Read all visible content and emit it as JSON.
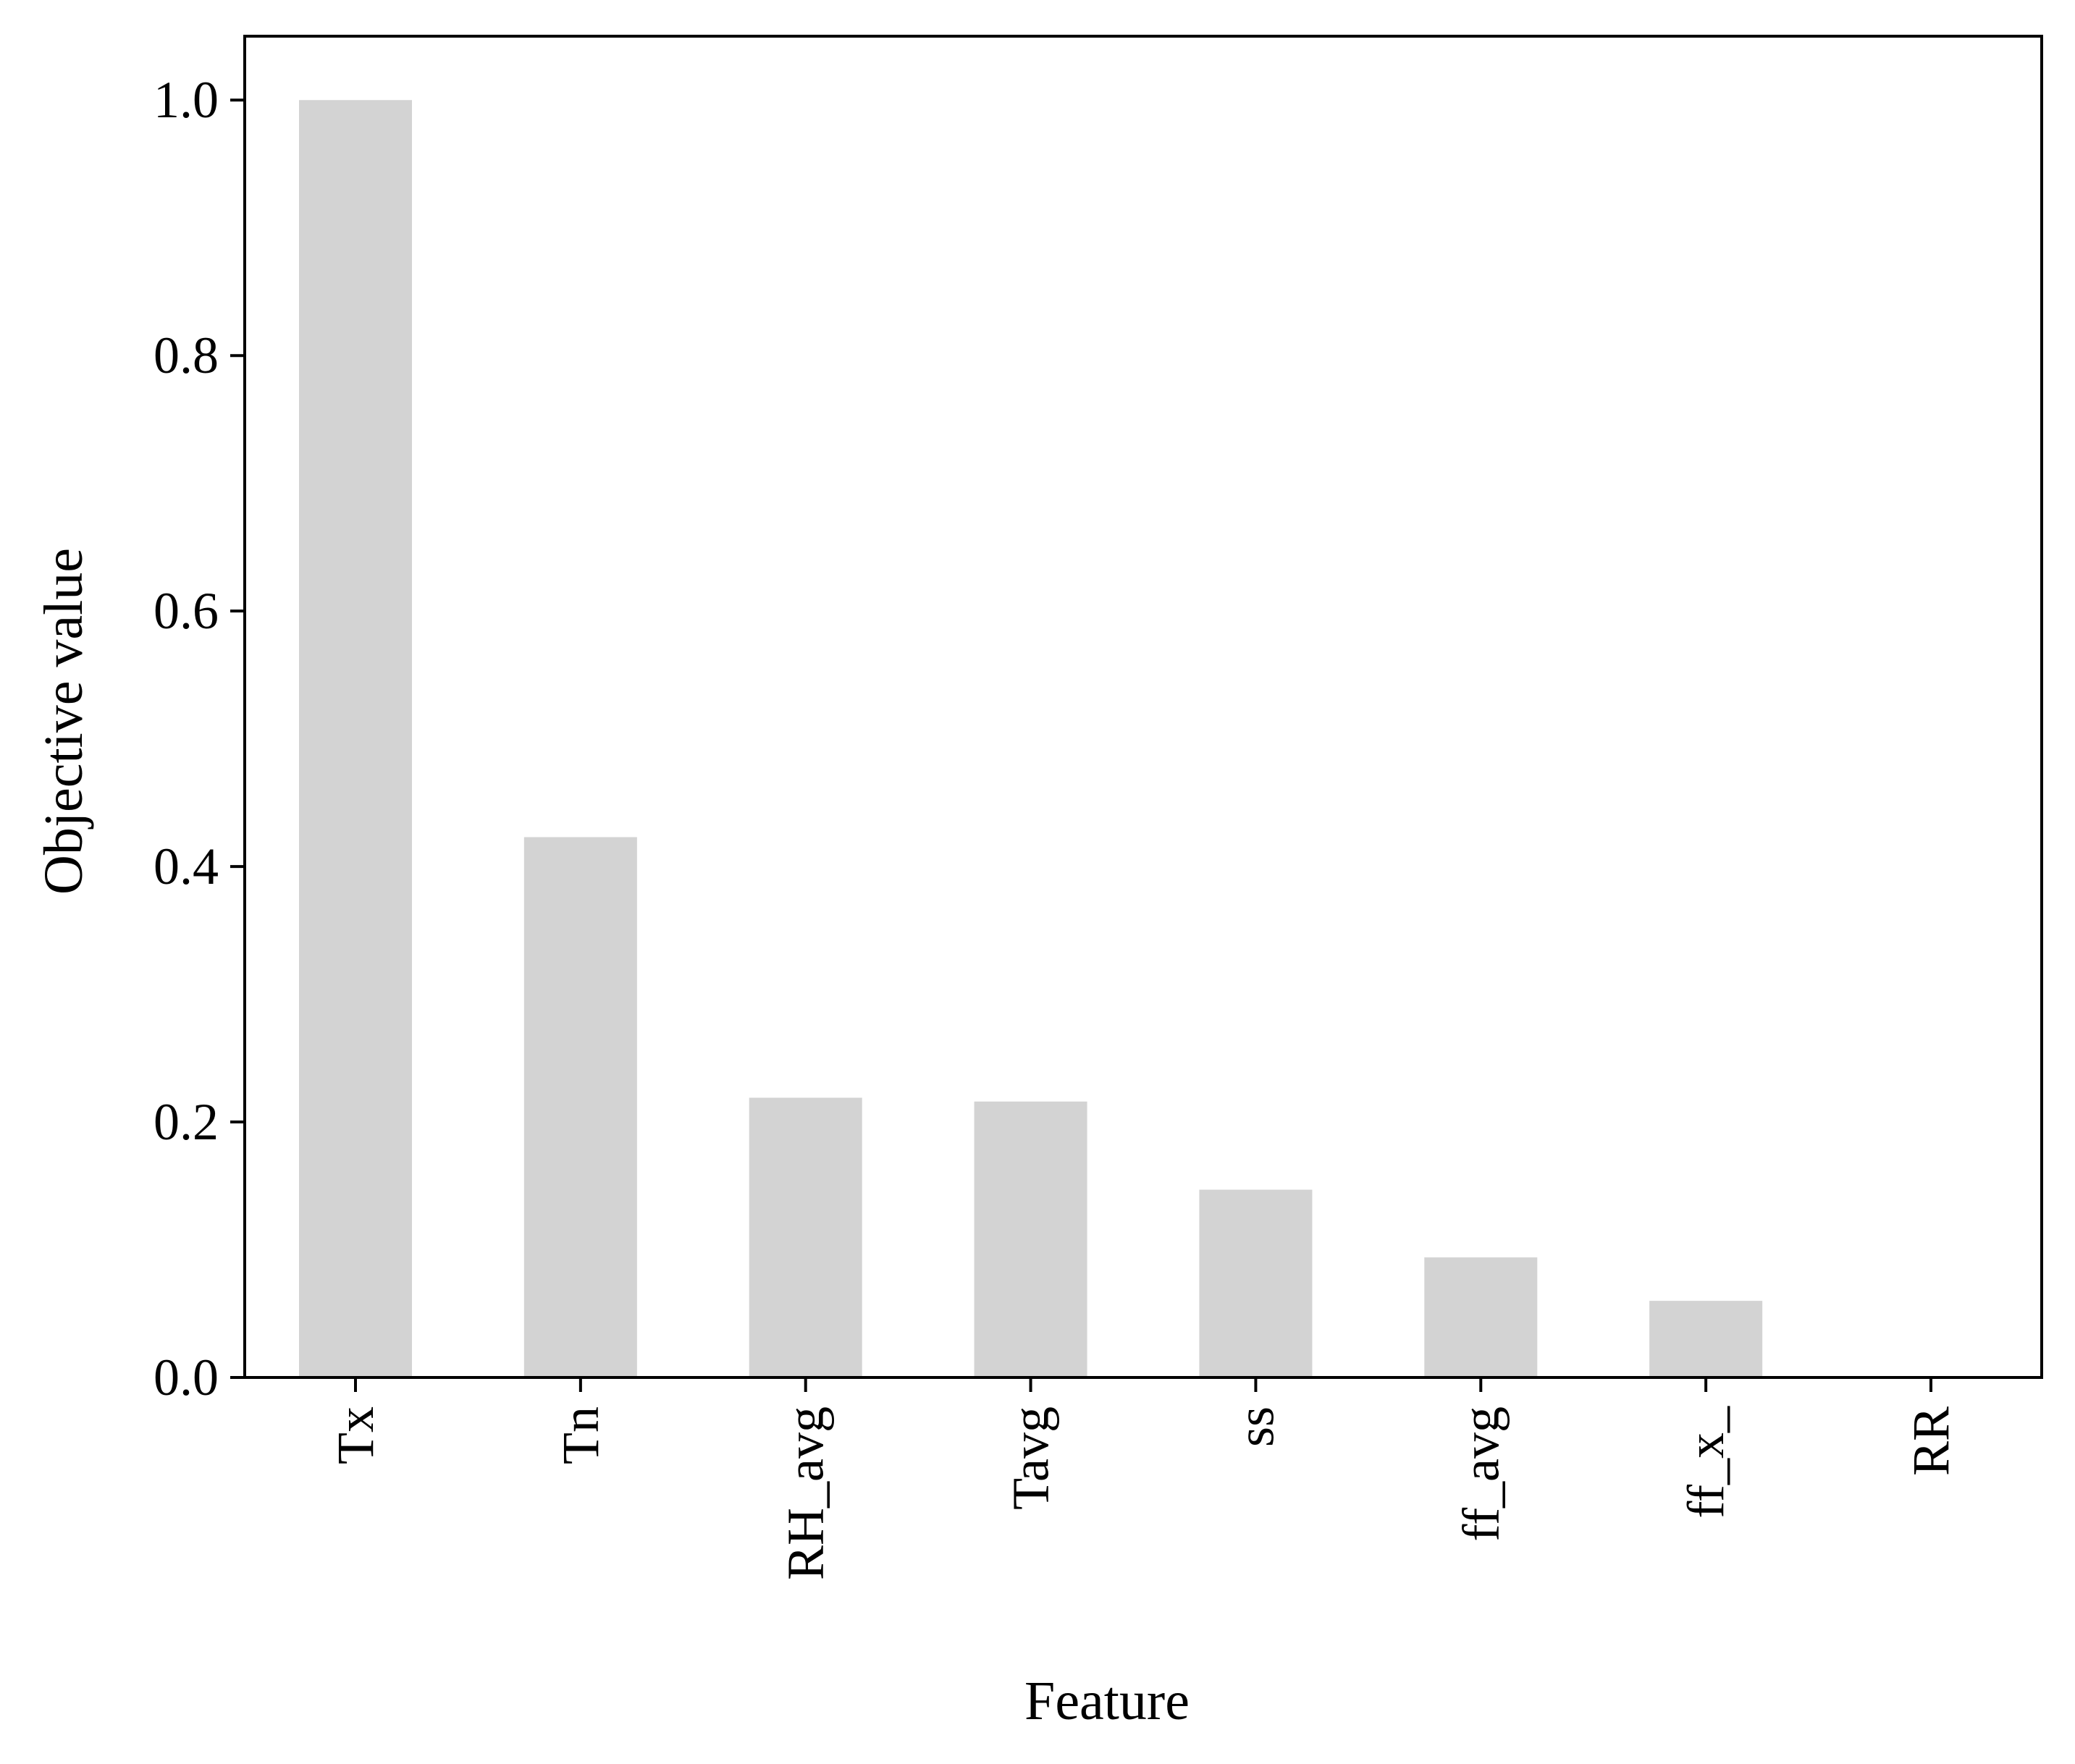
{
  "chart_data": {
    "type": "bar",
    "categories": [
      "Tx",
      "Tn",
      "RH_avg",
      "Tavg",
      "ss",
      "ff_avg",
      "ff_x_",
      "RR"
    ],
    "values": [
      1.0,
      0.423,
      0.219,
      0.216,
      0.147,
      0.094,
      0.06,
      0.0
    ],
    "xlabel": "Feature",
    "ylabel": "Objective value",
    "ylim": [
      0,
      1.05
    ],
    "yticks": [
      0.0,
      0.2,
      0.4,
      0.6,
      0.8,
      1.0
    ],
    "ytick_labels": [
      "0.0",
      "0.2",
      "0.4",
      "0.6",
      "0.8",
      "1.0"
    ],
    "grid": false,
    "bar_color": "#d3d3d3"
  }
}
